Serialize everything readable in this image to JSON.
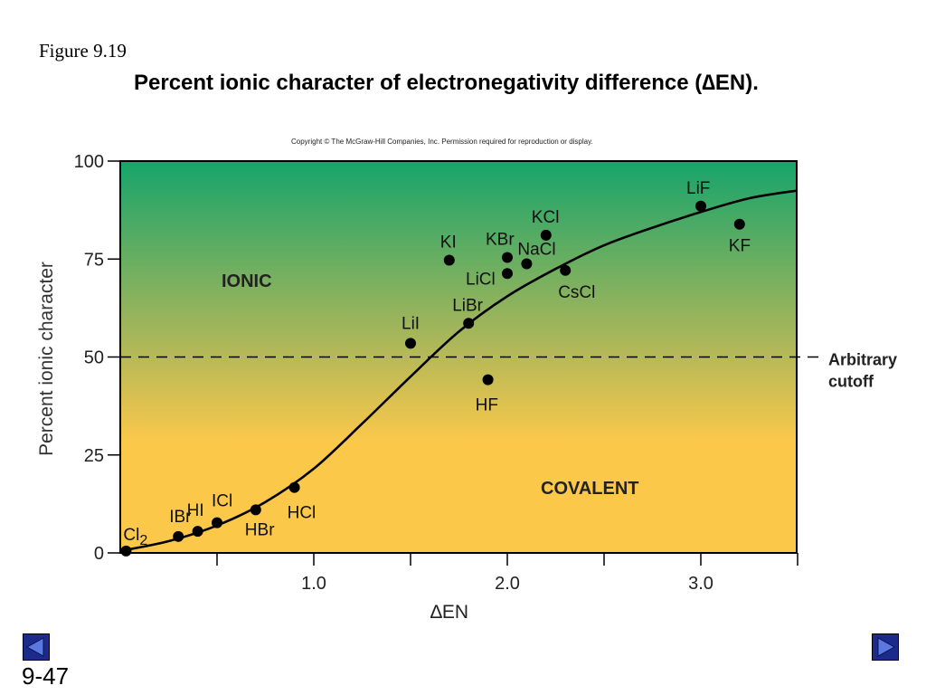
{
  "slide": {
    "figure_label": "Figure 9.19",
    "title": "Percent ionic character of electronegativity difference (∆EN).",
    "copyright": "Copyright © The McGraw-Hill Companies, Inc. Permission required for reproduction or display.",
    "slide_number": "9-47"
  },
  "colors": {
    "gradient_top": "#17a46b",
    "gradient_mid": "#a8b65a",
    "gradient_bottom": "#fcc84a",
    "points": "#000000",
    "nav_button": "#1c2a8c"
  },
  "chart_data": {
    "type": "scatter",
    "xlabel": "∆EN",
    "ylabel": "Percent ionic character",
    "xlim": [
      0,
      3.5
    ],
    "ylim": [
      0,
      100
    ],
    "x_ticks": [
      0.5,
      1.0,
      1.5,
      2.0,
      2.5,
      3.0,
      3.5
    ],
    "x_tick_labels": [
      "1.0",
      "2.0",
      "3.0"
    ],
    "y_ticks": [
      0,
      25,
      50,
      75,
      100
    ],
    "y_tick_labels": [
      "0",
      "25",
      "50",
      "75",
      "100"
    ],
    "region_labels": {
      "ionic": "IONIC",
      "covalent": "COVALENT"
    },
    "cutoff": {
      "y": 50,
      "label_line1": "Arbitrary",
      "label_line2": "cutoff"
    },
    "points": [
      {
        "label": "Cl",
        "sub": "2",
        "x": 0.03,
        "y": 0.5
      },
      {
        "label": "IBr",
        "x": 0.3,
        "y": 4.2
      },
      {
        "label": "HI",
        "x": 0.4,
        "y": 5.5
      },
      {
        "label": "ICl",
        "x": 0.5,
        "y": 7.7
      },
      {
        "label": "HBr",
        "x": 0.7,
        "y": 11.0
      },
      {
        "label": "HCl",
        "x": 0.9,
        "y": 16.7
      },
      {
        "label": "LiI",
        "x": 1.5,
        "y": 53.5
      },
      {
        "label": "KI",
        "x": 1.7,
        "y": 74.7
      },
      {
        "label": "LiBr",
        "x": 1.8,
        "y": 58.6
      },
      {
        "label": "HF",
        "x": 1.9,
        "y": 44.2
      },
      {
        "label": "KBr",
        "x": 2.0,
        "y": 75.4
      },
      {
        "label": "LiCl",
        "x": 2.0,
        "y": 71.3
      },
      {
        "label": "NaCl",
        "x": 2.1,
        "y": 73.8
      },
      {
        "label": "KCl",
        "x": 2.2,
        "y": 81.1
      },
      {
        "label": "CsCl",
        "x": 2.3,
        "y": 72.1
      },
      {
        "label": "LiF",
        "x": 3.0,
        "y": 88.5
      },
      {
        "label": "KF",
        "x": 3.2,
        "y": 83.9
      }
    ],
    "curve": {
      "x": [
        0.0,
        0.25,
        0.5,
        0.75,
        1.0,
        1.25,
        1.5,
        1.75,
        2.0,
        2.25,
        2.5,
        2.75,
        3.0,
        3.25,
        3.5
      ],
      "y": [
        0.5,
        3.0,
        7.0,
        13.0,
        21.5,
        33.0,
        45.0,
        56.5,
        65.5,
        72.5,
        78.5,
        83.0,
        87.0,
        90.5,
        92.5
      ]
    }
  }
}
